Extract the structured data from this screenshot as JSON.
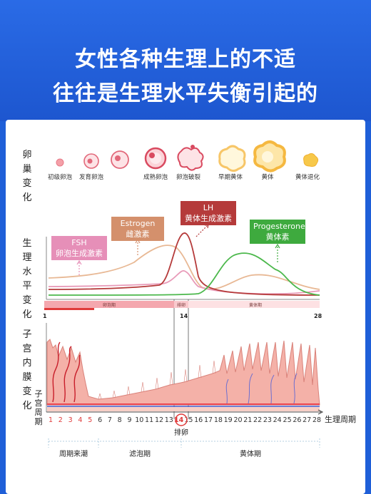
{
  "header": {
    "line1": "女性各种生理上的不适",
    "line2": "往往是生理水平失衡引起的"
  },
  "sections": {
    "ovary": [
      "卵",
      "巢",
      "变",
      "化"
    ],
    "hormone": [
      "生",
      "理",
      "水",
      "平",
      "变",
      "化"
    ],
    "endometrium": [
      "子",
      "宫",
      "内",
      "膜",
      "变",
      "化"
    ]
  },
  "ovary_stages": [
    "初级卵泡",
    "发育卵泡",
    "成熟卵泡",
    "卵泡破裂",
    "早期黄体",
    "黄体",
    "黄体退化"
  ],
  "hormones": {
    "fsh": {
      "name": "FSH",
      "label": "卵泡生成激素",
      "color": "#e68fb8"
    },
    "estrogen": {
      "name": "Estrogen",
      "label": "雌激素",
      "color": "#d4906c"
    },
    "lh": {
      "name": "LH",
      "label": "黄体生成激素",
      "color": "#b53a3a"
    },
    "progesterone": {
      "name": "Progesterone",
      "label": "黄体素",
      "color": "#3eaa3e"
    }
  },
  "phase_bar": {
    "follicular": "卵泡期",
    "ovulation": "排卵",
    "luteal": "黄体期",
    "start": "1",
    "mid": "14",
    "end": "28"
  },
  "cycle_axis": {
    "label_left": [
      "子",
      "宫",
      "周",
      "期"
    ],
    "days": [
      "1",
      "2",
      "3",
      "4",
      "5",
      "6",
      "7",
      "8",
      "9",
      "10",
      "11",
      "12",
      "13",
      "14",
      "15",
      "16",
      "17",
      "18",
      "19",
      "20",
      "21",
      "22",
      "23",
      "24",
      "25",
      "26",
      "27",
      "28"
    ],
    "axis_label": "生理周期",
    "ovulation_label": "排卵",
    "phases": [
      "周期来潮",
      "滤泡期",
      "黄体期"
    ],
    "colors": {
      "menses": "#e03a3a",
      "normal": "#333333",
      "ovulation": "#e03a3a"
    }
  }
}
